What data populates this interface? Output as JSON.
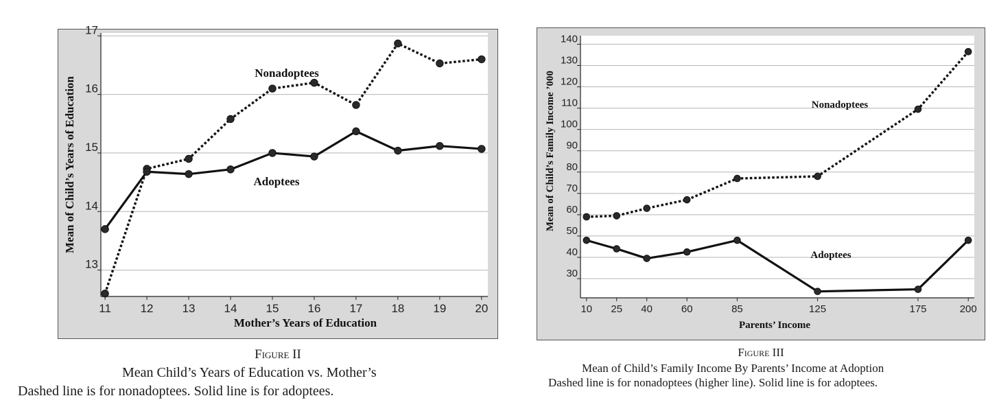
{
  "figures": [
    {
      "caption": {
        "number": "Figure II",
        "title": "Mean Child’s Years of Education vs. Mother’s",
        "note": "Dashed line is for nonadoptees. Solid line is for adoptees."
      }
    },
    {
      "caption": {
        "number": "Figure III",
        "title": "Mean of Child’s Family Income By Parents’ Income at Adoption",
        "note": "Dashed line is for nonadoptees (higher line). Solid line is for adoptees."
      }
    }
  ],
  "chart_data": [
    {
      "type": "line",
      "title": "",
      "xlabel": "Mother’s Years of Education",
      "ylabel": "Mean of Child’s Years of Education",
      "x": [
        11,
        12,
        13,
        14,
        15,
        16,
        17,
        18,
        19,
        20
      ],
      "xticks": [
        "11",
        "12",
        "13",
        "14",
        "15",
        "16",
        "17",
        "18",
        "19",
        "20"
      ],
      "yticks": [
        "13",
        "14",
        "15",
        "16",
        "17"
      ],
      "xlim": [
        10.9,
        20.15
      ],
      "ylim": [
        12.55,
        17.05
      ],
      "grid": true,
      "series": [
        {
          "name": "Nonadoptees",
          "style": "dashed",
          "values": [
            12.6,
            14.73,
            14.9,
            15.58,
            16.1,
            16.2,
            15.82,
            16.87,
            16.53,
            16.6
          ]
        },
        {
          "name": "Adoptees",
          "style": "solid",
          "values": [
            13.7,
            14.68,
            14.64,
            14.72,
            15.0,
            14.94,
            15.37,
            15.04,
            15.12,
            15.07
          ]
        }
      ],
      "annotations": [
        "Nonadoptees",
        "Adoptees"
      ]
    },
    {
      "type": "line",
      "title": "",
      "xlabel": "Parents’ Income",
      "ylabel": "Mean of Child’s Family Income ’000",
      "x": [
        10,
        25,
        40,
        60,
        85,
        125,
        175,
        200
      ],
      "xticks": [
        "10",
        "25",
        "40",
        "60",
        "85",
        "125",
        "175",
        "200"
      ],
      "yticks": [
        "30",
        "40",
        "50",
        "60",
        "70",
        "80",
        "90",
        "100",
        "110",
        "120",
        "130",
        "140"
      ],
      "xlim": [
        7,
        203
      ],
      "ylim": [
        21,
        144
      ],
      "grid": true,
      "series": [
        {
          "name": "Nonadoptees",
          "style": "dashed",
          "values": [
            59,
            59.5,
            63,
            67,
            77,
            78,
            109.5,
            136.5
          ]
        },
        {
          "name": "Adoptees",
          "style": "solid",
          "values": [
            48,
            44,
            39.5,
            42.5,
            48,
            24,
            25,
            48
          ]
        }
      ],
      "annotations": [
        "Nonadoptees",
        "Adoptees"
      ]
    }
  ]
}
